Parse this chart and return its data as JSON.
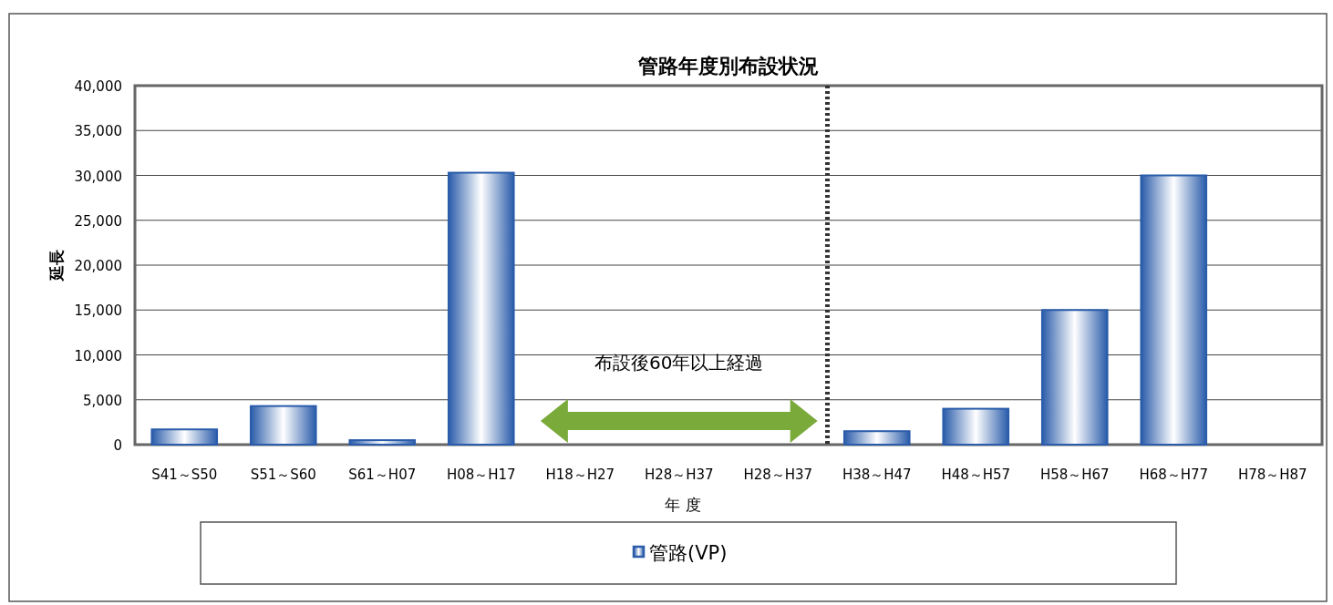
{
  "chart_data": {
    "type": "bar",
    "title": "管路年度別布設状況",
    "xlabel": "年 度",
    "ylabel": "延長",
    "categories": [
      "S41～S50",
      "S51～S60",
      "S61～H07",
      "H08～H17",
      "H18～H27",
      "H28～H37",
      "H28～H37",
      "H38～H47",
      "H48～H57",
      "H58～H67",
      "H68～H77",
      "H78～H87"
    ],
    "series": [
      {
        "name": "管路(VP)",
        "color": "#2a5caa",
        "values": [
          1700,
          4300,
          500,
          30300,
          0,
          0,
          0,
          1500,
          4000,
          15000,
          30000,
          0
        ]
      }
    ],
    "ylim": [
      0,
      40000
    ],
    "yticks": [
      0,
      {
        "value": 5000,
        "label": "5,000"
      },
      {
        "value": 10000,
        "label": "10,000"
      },
      {
        "value": 15000,
        "label": "15,000"
      },
      {
        "value": 20000,
        "label": "20,000"
      },
      {
        "value": 25000,
        "label": "25,000"
      },
      {
        "value": 30000,
        "label": "30,000"
      },
      {
        "value": 35000,
        "label": "35,000"
      },
      {
        "value": 40000,
        "label": "40,000"
      }
    ],
    "grid": "y",
    "legend": "bottom",
    "annotations": [
      "布設後60年以上経過"
    ]
  }
}
